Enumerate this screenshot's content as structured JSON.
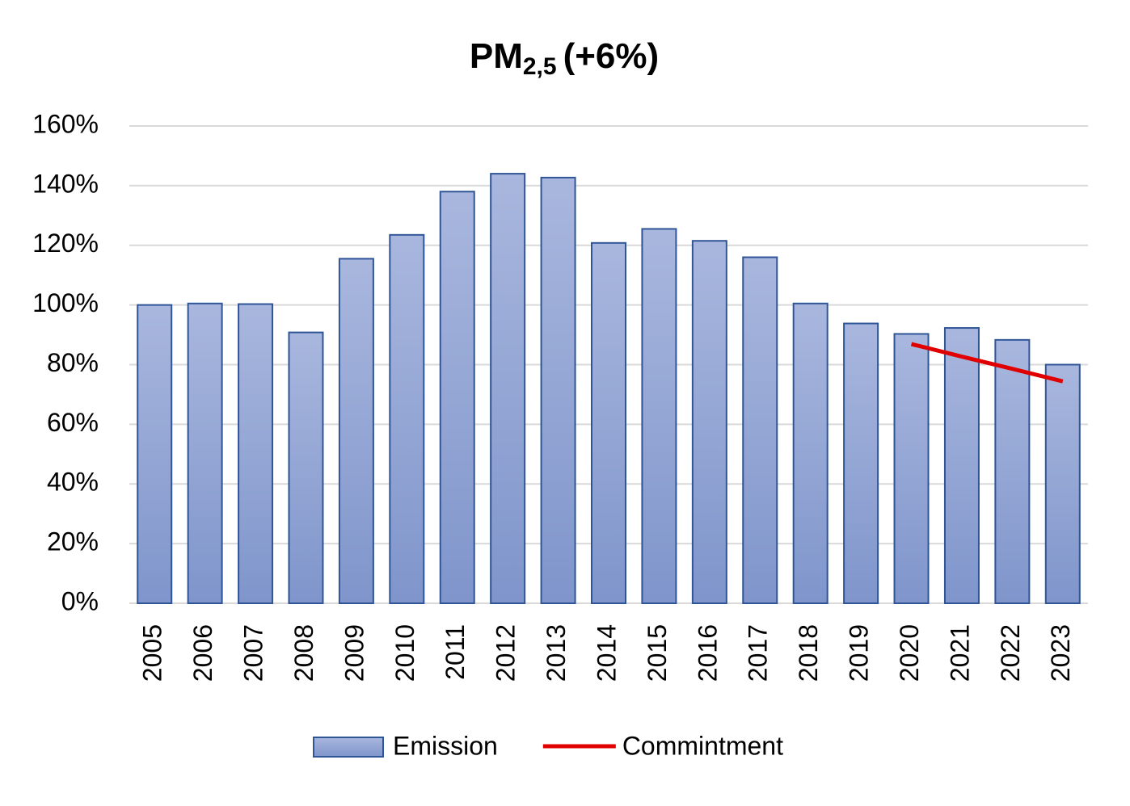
{
  "chart_data": {
    "type": "bar",
    "title": [
      "PM",
      "2,5",
      "(+6%)"
    ],
    "categories": [
      "2005",
      "2006",
      "2007",
      "2008",
      "2009",
      "2010",
      "2011",
      "2012",
      "2013",
      "2014",
      "2015",
      "2016",
      "2017",
      "2018",
      "2019",
      "2020",
      "2021",
      "2022",
      "2023"
    ],
    "series": [
      {
        "name": "Emission",
        "type": "bar",
        "color": "#8ea0d4",
        "values": [
          100,
          100.5,
          100.3,
          90.8,
          115.5,
          123.5,
          138,
          144,
          142.7,
          120.8,
          125.5,
          121.5,
          116,
          100.5,
          93.8,
          90.3,
          92.3,
          88.3,
          80
        ]
      },
      {
        "name": "Commintment",
        "type": "line",
        "color": "#e00000",
        "values": [
          null,
          null,
          null,
          null,
          null,
          null,
          null,
          null,
          null,
          null,
          null,
          null,
          null,
          null,
          null,
          86.9,
          82.7,
          78.6,
          74.4
        ]
      }
    ],
    "ylim": [
      0,
      160
    ],
    "yticks": [
      {
        "value": 0,
        "label": "0%"
      },
      {
        "value": 20,
        "label": "20%"
      },
      {
        "value": 40,
        "label": "40%"
      },
      {
        "value": 60,
        "label": "60%"
      },
      {
        "value": 80,
        "label": "80%"
      },
      {
        "value": 100,
        "label": "100%"
      },
      {
        "value": 120,
        "label": "120%"
      },
      {
        "value": 140,
        "label": "140%"
      },
      {
        "value": 160,
        "label": "160%"
      }
    ],
    "grid": true,
    "legend": "bottom"
  }
}
